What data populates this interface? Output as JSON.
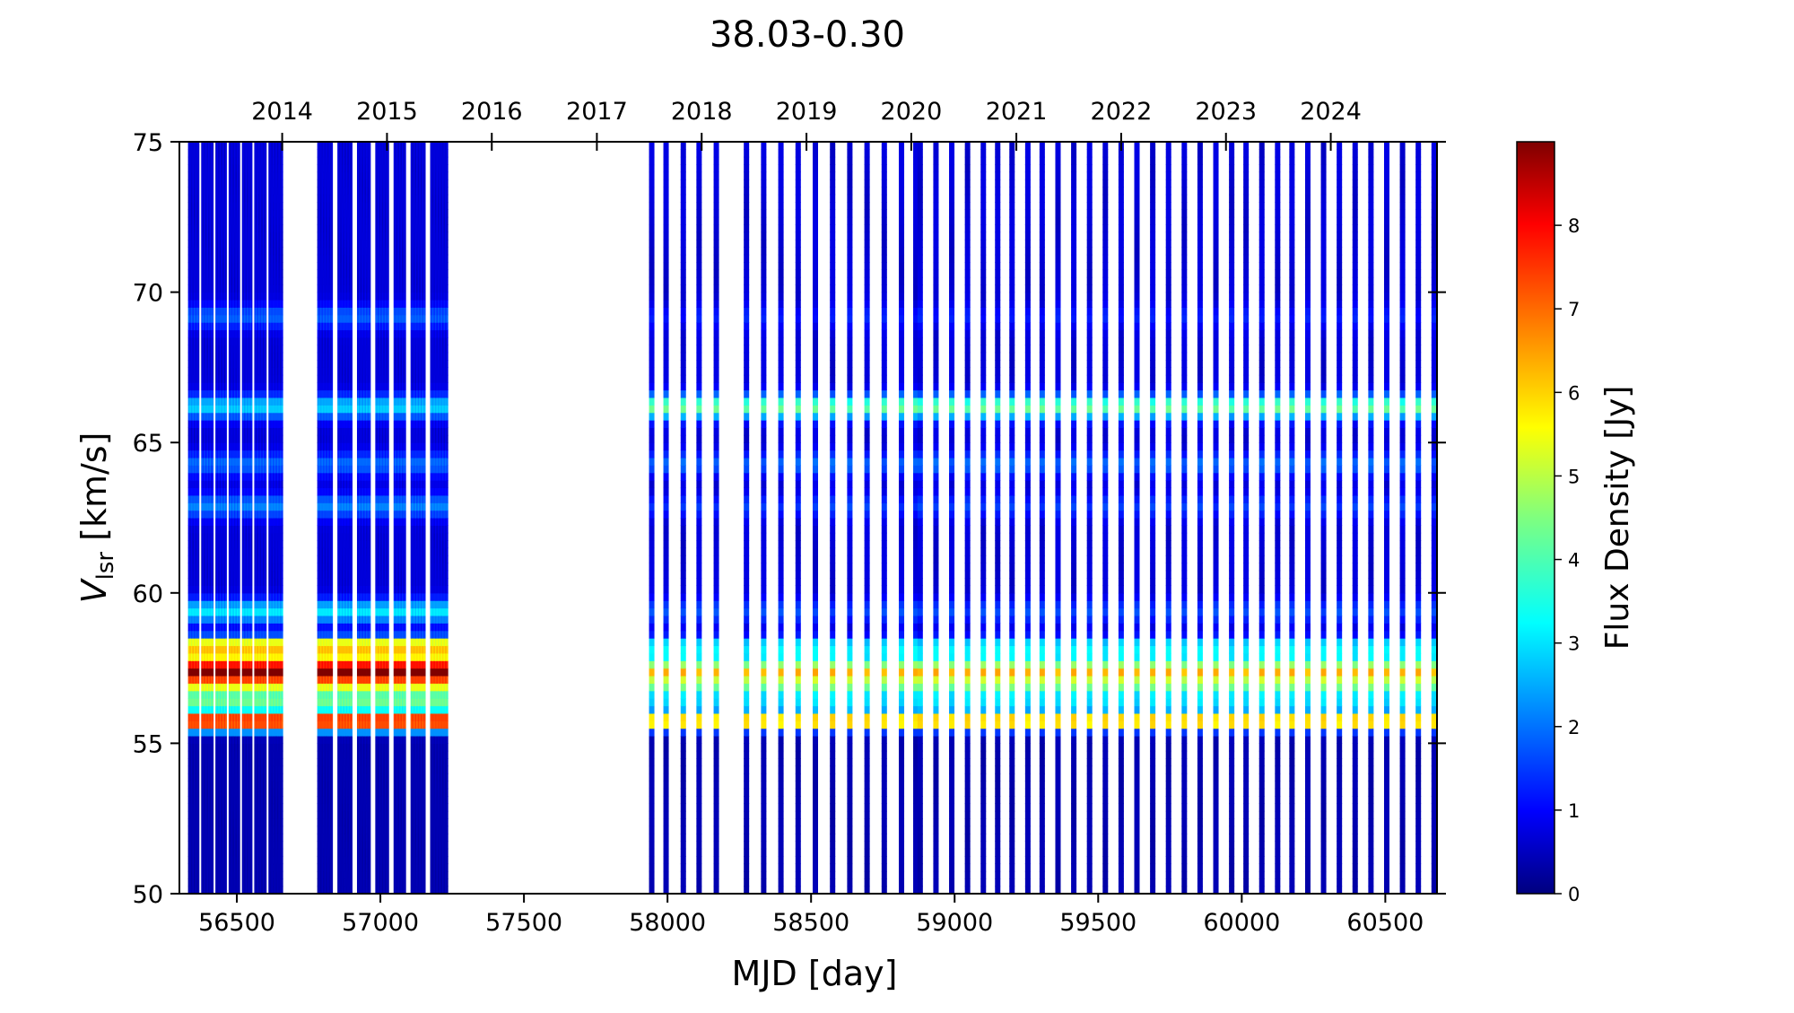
{
  "chart_data": {
    "type": "heatmap",
    "title": "38.03-0.30",
    "xlabel": "MJD [day]",
    "ylabel_main": "V",
    "ylabel_sub": "lsr",
    "ylabel_unit": " [km/s]",
    "top_xticks": [
      {
        "label": "2014",
        "mjd": 56658
      },
      {
        "label": "2015",
        "mjd": 57023
      },
      {
        "label": "2016",
        "mjd": 57388
      },
      {
        "label": "2017",
        "mjd": 57754
      },
      {
        "label": "2018",
        "mjd": 58119
      },
      {
        "label": "2019",
        "mjd": 58484
      },
      {
        "label": "2020",
        "mjd": 58849
      },
      {
        "label": "2021",
        "mjd": 59215
      },
      {
        "label": "2022",
        "mjd": 59580
      },
      {
        "label": "2023",
        "mjd": 59945
      },
      {
        "label": "2024",
        "mjd": 60310
      }
    ],
    "xlim": [
      56300,
      60680
    ],
    "ylim": [
      50,
      75
    ],
    "xticks": [
      "56500",
      "57000",
      "57500",
      "58000",
      "58500",
      "59000",
      "59500",
      "60000",
      "60500"
    ],
    "yticks": [
      "50",
      "55",
      "60",
      "65",
      "70",
      "75"
    ],
    "colorbar_label": "Flux Density [Jy]",
    "colorbar_range": [
      0,
      9
    ],
    "colorbar_ticks": [
      "0",
      "1",
      "2",
      "3",
      "4",
      "5",
      "6",
      "7",
      "8"
    ],
    "colormap": "jet",
    "dense_blocks": [
      {
        "x_start": 56330,
        "x_end": 56660
      },
      {
        "x_start": 56780,
        "x_end": 57235
      }
    ],
    "observation_mjd": [
      57945,
      57995,
      58055,
      58110,
      58170,
      58275,
      58335,
      58395,
      58455,
      58515,
      58575,
      58635,
      58695,
      58755,
      58815,
      58865,
      58880,
      58935,
      58990,
      59045,
      59100,
      59150,
      59200,
      59255,
      59305,
      59360,
      59415,
      59470,
      59525,
      59580,
      59635,
      59690,
      59745,
      59800,
      59855,
      59910,
      59965,
      60015,
      60070,
      60125,
      60175,
      60230,
      60285,
      60340,
      60395,
      60450,
      60505,
      60560,
      60615,
      60670
    ],
    "velocity_features": [
      {
        "v": 55.75,
        "early_jy": 7.8,
        "late_jy": 6.2
      },
      {
        "v": 56.4,
        "early_jy": 3.4,
        "late_jy": 2.2
      },
      {
        "v": 56.9,
        "early_jy": 4.0,
        "late_jy": 3.2
      },
      {
        "v": 57.35,
        "early_jy": 8.2,
        "late_jy": 5.0
      },
      {
        "v": 57.75,
        "early_jy": 4.5,
        "late_jy": 2.3
      },
      {
        "v": 58.25,
        "early_jy": 5.6,
        "late_jy": 2.6
      },
      {
        "v": 59.4,
        "early_jy": 2.4,
        "late_jy": 1.0
      },
      {
        "v": 62.9,
        "early_jy": 1.5,
        "late_jy": 0.9
      },
      {
        "v": 64.3,
        "early_jy": 1.3,
        "late_jy": 1.3
      },
      {
        "v": 66.2,
        "early_jy": 2.2,
        "late_jy": 3.6
      },
      {
        "v": 69.2,
        "early_jy": 1.2,
        "late_jy": 0.6
      }
    ],
    "colors": {
      "axis": "#000000",
      "background": "#ffffff"
    }
  }
}
